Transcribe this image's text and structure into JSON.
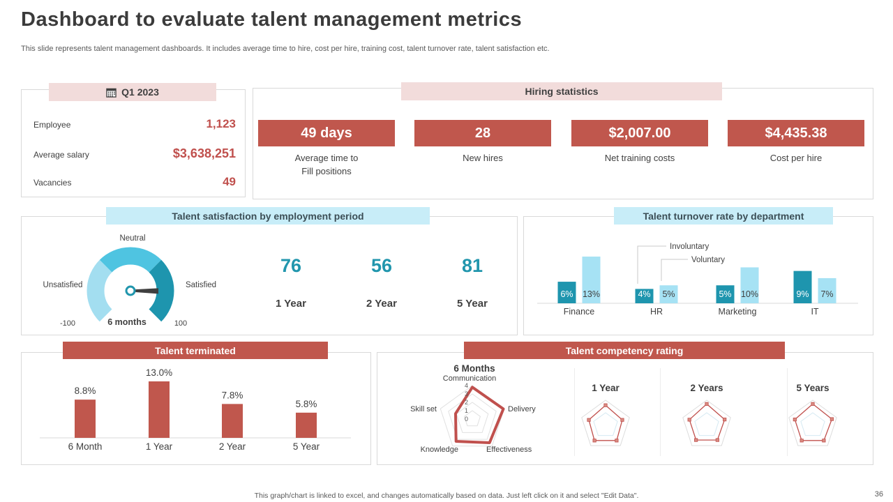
{
  "slide": {
    "title": "Dashboard to evaluate talent management metrics",
    "subtitle": "This slide represents talent management dashboards. It includes average time to hire, cost per hire, training cost, talent turnover rate, talent satisfaction etc.",
    "footer": "This graph/chart is linked to excel, and changes automatically based on data. Just left click on it and select \"Edit Data\".",
    "page_number": "36"
  },
  "colors": {
    "accent_red": "#c0574d",
    "value_red": "#c0504d",
    "band_pink": "#f2dcdb",
    "band_cyan": "#c8edf8",
    "teal_dark": "#1e95ae",
    "cyan_mid": "#4fc4e1",
    "cyan_pale": "#a3def0",
    "cyan_light_bar": "#a6e2f4",
    "text_dark": "#404040",
    "text_gray": "#595959",
    "border": "#d9d9d9"
  },
  "q1_card": {
    "header": "Q1 2023",
    "icon": "calendar-icon",
    "rows": [
      {
        "label": "Employee",
        "value": "1,123"
      },
      {
        "label": "Average salary",
        "value": "$3,638,251"
      },
      {
        "label": "Vacancies",
        "value": "49"
      }
    ]
  },
  "hiring": {
    "header": "Hiring statistics",
    "kpis": [
      {
        "value": "49 days",
        "label": "Average time to\nFill positions"
      },
      {
        "value": "28",
        "label": "New hires"
      },
      {
        "value": "$2,007.00",
        "label": "Net training costs"
      },
      {
        "value": "$4,435.38",
        "label": "Cost per hire"
      }
    ]
  },
  "chart_data": [
    {
      "name": "talent_satisfaction_gauge",
      "type": "gauge",
      "title": "Talent satisfaction by employment period",
      "min": -100,
      "max": 100,
      "center_label": "6 months",
      "needle_value": 67,
      "segments": [
        {
          "label": "Unsatisfied",
          "color": "#a3def0"
        },
        {
          "label": "Neutral",
          "color": "#4fc4e1"
        },
        {
          "label": "Satisfied",
          "color": "#1e95ae"
        }
      ],
      "scores": [
        {
          "label": "1 Year",
          "value": 76
        },
        {
          "label": "2 Year",
          "value": 56
        },
        {
          "label": "5 Year",
          "value": 81
        }
      ]
    },
    {
      "name": "talent_turnover",
      "type": "bar",
      "title": "Talent turnover rate by department",
      "categories": [
        "Finance",
        "HR",
        "Marketing",
        "IT"
      ],
      "series": [
        {
          "name": "Involuntary",
          "color": "#1e95ae",
          "values": [
            6,
            4,
            5,
            9
          ]
        },
        {
          "name": "Voluntary",
          "color": "#a6e2f4",
          "values": [
            13,
            5,
            10,
            7
          ]
        }
      ],
      "value_suffix": "%",
      "ylim": [
        0,
        13
      ],
      "legend_position": "inside-top"
    },
    {
      "name": "talent_terminated",
      "type": "bar",
      "title": "Talent terminated",
      "categories": [
        "6 Month",
        "1 Year",
        "2 Year",
        "5 Year"
      ],
      "values": [
        8.8,
        13.0,
        7.8,
        5.8
      ],
      "value_labels": [
        "8.8%",
        "13.0%",
        "7.8%",
        "5.8%"
      ],
      "color": "#c0574d",
      "ylim": [
        0,
        14
      ]
    },
    {
      "name": "talent_competency",
      "type": "radar",
      "title": "Talent competency rating",
      "axes": [
        "Communication",
        "Delivery",
        "Effectiveness",
        "Knowledge",
        "Skill set"
      ],
      "scale_ticks": [
        0,
        1,
        2,
        3,
        4
      ],
      "max": 4,
      "line_color": "#c0504d",
      "charts": [
        {
          "name": "6 Months",
          "values": [
            3.8,
            3.9,
            3.5,
            3.3,
            2.1
          ]
        },
        {
          "name": "1 Year",
          "values": [
            3.2,
            2.8,
            3.0,
            3.0,
            2.8
          ]
        },
        {
          "name": "2 Years",
          "values": [
            3.4,
            3.0,
            2.9,
            2.9,
            2.9
          ]
        },
        {
          "name": "5 Years",
          "values": [
            3.4,
            3.2,
            3.0,
            3.0,
            3.0
          ]
        }
      ]
    }
  ]
}
